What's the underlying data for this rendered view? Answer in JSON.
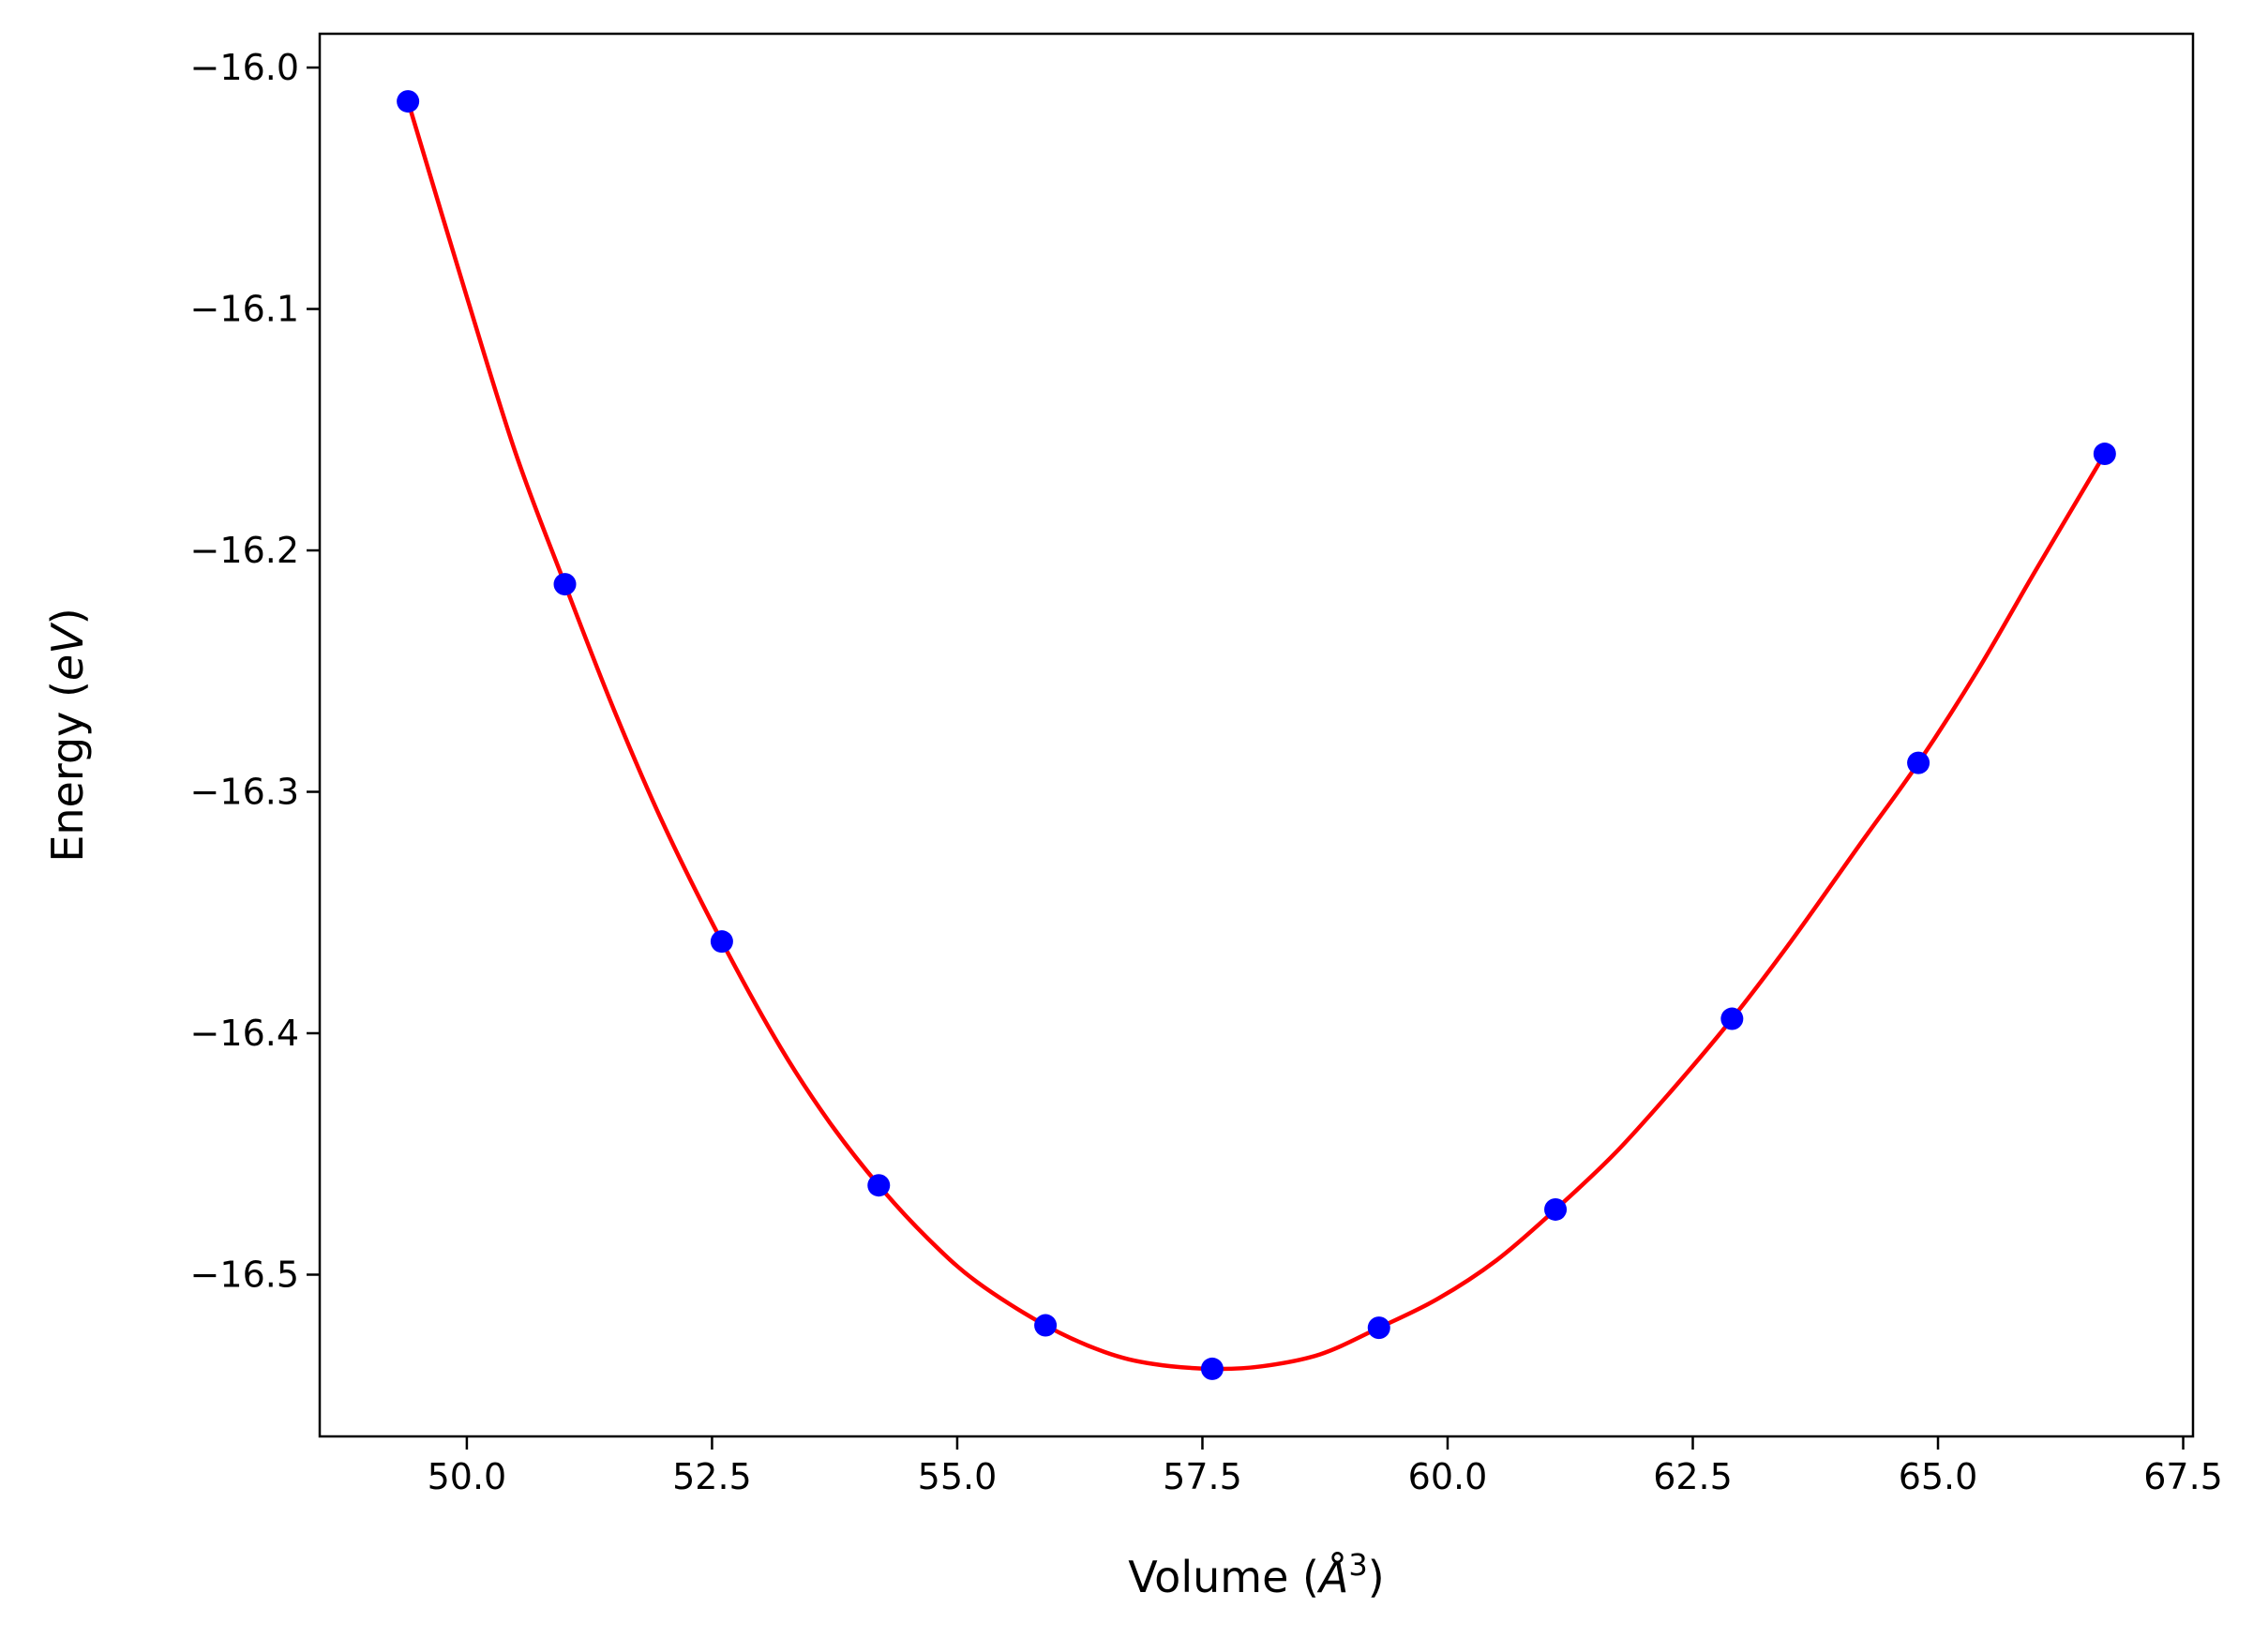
{
  "chart_data": {
    "type": "scatter",
    "title": "",
    "xlabel": "Volume (Å³)",
    "xlabel_parts": {
      "prefix": "Volume (",
      "symbol": "Å",
      "superscript": "3",
      "suffix": ")"
    },
    "ylabel": "Energy (eV)",
    "ylabel_parts": {
      "prefix": "Energy (",
      "unit": "eV",
      "suffix": ")"
    },
    "xlim": [
      48.5,
      67.6
    ],
    "ylim": [
      -16.567,
      -15.986
    ],
    "x_ticks": [
      50.0,
      52.5,
      55.0,
      57.5,
      60.0,
      62.5,
      65.0,
      67.5
    ],
    "x_tick_labels": [
      "50.0",
      "52.5",
      "55.0",
      "57.5",
      "60.0",
      "62.5",
      "65.0",
      "67.5"
    ],
    "y_ticks": [
      -16.0,
      -16.1,
      -16.2,
      -16.3,
      -16.4,
      -16.5
    ],
    "y_tick_labels": [
      "−16.0",
      "−16.1",
      "−16.2",
      "−16.3",
      "−16.4",
      "−16.5"
    ],
    "grid": false,
    "legend": "none",
    "series": [
      {
        "kind": "points",
        "color": "#0000ff",
        "x": [
          49.4,
          51.0,
          52.6,
          54.2,
          55.9,
          57.6,
          59.3,
          61.1,
          62.9,
          64.8,
          66.7
        ],
        "y": [
          -16.014,
          -16.214,
          -16.362,
          -16.463,
          -16.521,
          -16.539,
          -16.522,
          -16.473,
          -16.394,
          -16.288,
          -16.16
        ]
      },
      {
        "kind": "fit-curve",
        "color": "#ff0000",
        "x": [
          49.4,
          50.0,
          50.5,
          51.0,
          51.5,
          52.0,
          52.6,
          53.2,
          53.7,
          54.2,
          54.7,
          55.2,
          55.9,
          56.5,
          57.0,
          57.6,
          58.1,
          58.7,
          59.3,
          59.9,
          60.5,
          61.1,
          61.7,
          62.3,
          62.9,
          63.5,
          64.2,
          64.8,
          65.4,
          66.0,
          66.7
        ],
        "y": [
          -16.014,
          -16.095,
          -16.16,
          -16.214,
          -16.266,
          -16.313,
          -16.362,
          -16.406,
          -16.437,
          -16.463,
          -16.485,
          -16.503,
          -16.521,
          -16.532,
          -16.537,
          -16.539,
          -16.538,
          -16.533,
          -16.522,
          -16.51,
          -16.494,
          -16.473,
          -16.45,
          -16.423,
          -16.394,
          -16.362,
          -16.322,
          -16.288,
          -16.25,
          -16.208,
          -16.16
        ]
      }
    ]
  }
}
